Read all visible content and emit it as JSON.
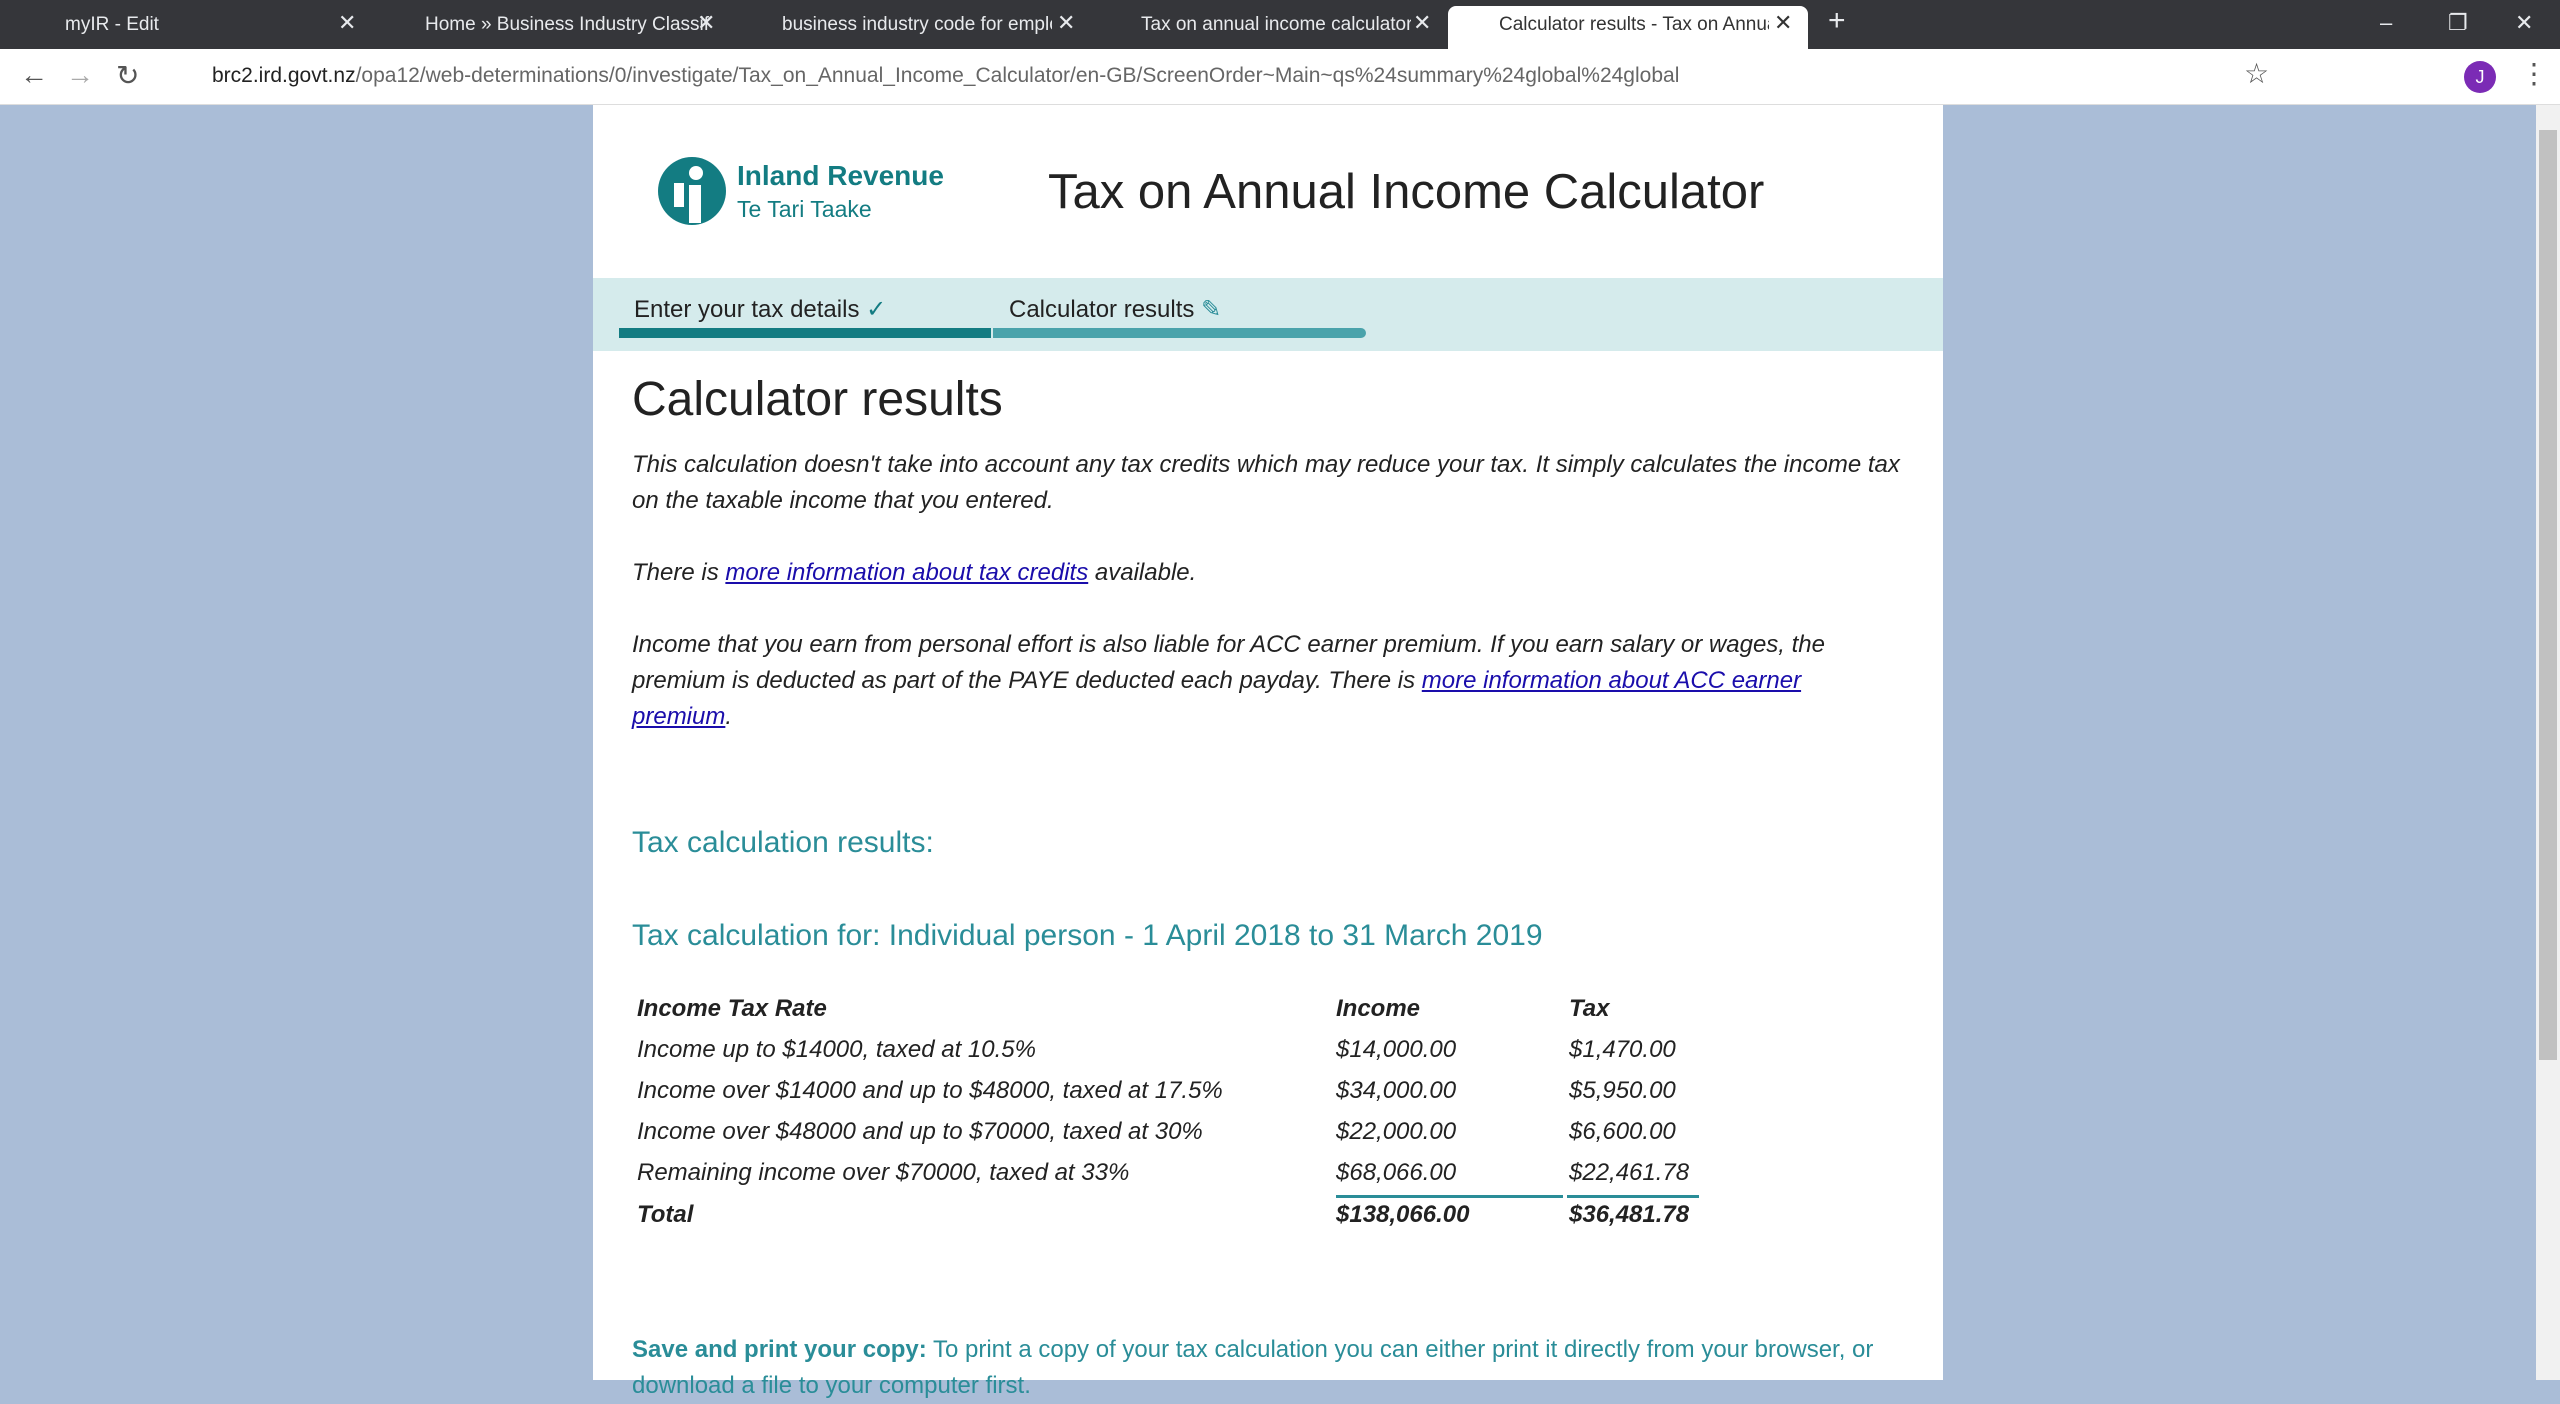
{
  "browser": {
    "tabs": [
      "myIR - Edit",
      "Home » Business Industry Classif",
      "business industry code for emplo",
      "Tax on annual income calculator",
      "Calculator results - Tax on Annua"
    ],
    "url_domain": "brc2.ird.govt.nz",
    "url_path": "/opa12/web-determinations/0/investigate/Tax_on_Annual_Income_Calculator/en-GB/ScreenOrder~Main~qs%24summary%24global%24global",
    "profile": "J"
  },
  "header": {
    "logo_name": "Inland Revenue",
    "logo_sub": "Te Tari Taake",
    "title": "Tax on Annual Income Calculator"
  },
  "steps": [
    "Enter your tax details",
    "Calculator results"
  ],
  "content": {
    "heading": "Calculator results",
    "p1": "This calculation doesn't take into account any tax credits which may reduce your tax. It simply calculates the income tax on the taxable income that you entered.",
    "p2": [
      "There is ",
      "more information about tax credits",
      " available."
    ],
    "p3": [
      "Income that you earn from personal effort is also liable for ACC earner premium. If you earn salary or wages, the premium is deducted as part of the PAYE deducted each payday. There is ",
      "more information about ACC earner premium",
      "."
    ],
    "results_heading": "Tax calculation results:",
    "for_heading": "Tax calculation for: Individual person - 1 April 2018 to 31 March 2019",
    "table": {
      "header": [
        "Income Tax Rate",
        "Income",
        "Tax"
      ],
      "rows": [
        [
          "Income up to $14000, taxed at 10.5%",
          "$14,000.00",
          "$1,470.00"
        ],
        [
          "Income over $14000 and up to $48000, taxed at 17.5%",
          "$34,000.00",
          "$5,950.00"
        ],
        [
          "Income over $48000 and up to $70000, taxed at 30%",
          "$22,000.00",
          "$6,600.00"
        ],
        [
          "Remaining income over $70000, taxed at 33%",
          "$68,066.00",
          "$22,461.78"
        ]
      ],
      "total": [
        "Total",
        "$138,066.00",
        "$36,481.78"
      ]
    },
    "save_label": "Save and print your copy:",
    "save_text": " To print a copy of your tax calculation you can either print it directly from your browser, or download a file to your computer first."
  }
}
